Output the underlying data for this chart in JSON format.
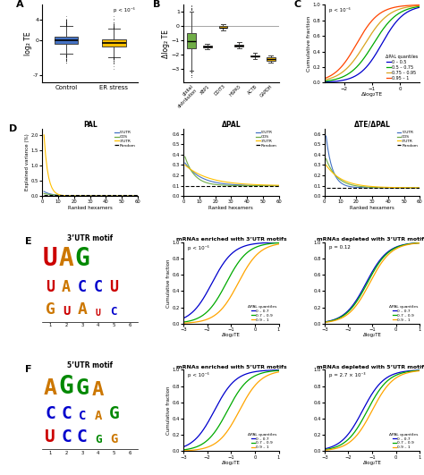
{
  "panel_A": {
    "ylabel": "log₂ TE",
    "categories": [
      "Control",
      "ER stress"
    ],
    "colors": [
      "#4472c4",
      "#ffc000"
    ],
    "pvalue": "p < 10⁻⁶",
    "ylim": [
      -8.5,
      7
    ]
  },
  "panel_B": {
    "ylabel": "Δlog₂ TE",
    "categories": [
      "global\ndistribution",
      "XBP1",
      "DDIT3",
      "HSPA5",
      "ACTB",
      "GAPDH"
    ],
    "colors": [
      "#70ad47",
      "#ffc000",
      "#ffc000",
      "#ffc000",
      "#ffc000",
      "#ffc000"
    ],
    "ylim": [
      -4.0,
      1.5
    ],
    "yticks": [
      -3,
      -2,
      -1,
      0,
      1
    ]
  },
  "panel_C": {
    "xlabel": "Δlog₂TE",
    "ylabel": "Cumulative fraction",
    "pvalue": "p < 10⁻⁶",
    "legend_title": "ΔPAL quantiles",
    "legend_entries": [
      "0 – 0.5",
      "0.5 – 0.75",
      "0.75 – 0.95",
      "0.95 – 1"
    ],
    "colors": [
      "#0000cd",
      "#00aa00",
      "#daa520",
      "#ff4500"
    ],
    "xlim": [
      -2.7,
      0.7
    ],
    "ylim": [
      0,
      1.0
    ]
  },
  "panel_D": {
    "titles": [
      "PAL",
      "ΔPAL",
      "ΔTE/ΔPAL"
    ],
    "xlabel": "Ranked hexamers",
    "ylabel": "Explained variance (%)",
    "legend_entries": [
      "5’UTR",
      "CDS",
      "3’UTR",
      "Random"
    ],
    "colors": [
      "#4472c4",
      "#70ad47",
      "#ffc000",
      "#000000"
    ],
    "line_styles": [
      "-",
      "-",
      "-",
      "--"
    ],
    "PAL_ylim": [
      0,
      2.2
    ],
    "DPAL_ylim": [
      0,
      0.65
    ],
    "DTEDPAL_ylim": [
      0,
      0.65
    ],
    "xlim": [
      0,
      60
    ]
  },
  "panel_E": {
    "title_motif": "3’UTR motif",
    "title_enriched": "mRNAs enriched with 3’UTR motifs",
    "title_depleted": "mRNAs depleted with 3’UTR motifs",
    "pvalue_enriched": "p < 10⁻⁶",
    "pvalue_depleted": "p = 0.12",
    "legend_title": "ΔPAL quantiles",
    "legend_entries": [
      "0 – 0.7",
      "0.7 – 0.9",
      "0.9 – 1"
    ],
    "colors": [
      "#0000cd",
      "#00aa00",
      "#ffa500"
    ],
    "xlabel": "Δlog₂TE",
    "ylabel": "Cumulative fraction"
  },
  "panel_F": {
    "title_motif": "5’UTR motif",
    "title_enriched": "mRNAs enriched with 5’UTR motifs",
    "title_depleted": "mRNAs depleted with 5’UTR motifs",
    "pvalue_enriched": "p < 10⁻⁶",
    "pvalue_depleted": "p = 2.7 × 10⁻³",
    "legend_title": "ΔPAL quantiles",
    "legend_entries": [
      "0 – 0.7",
      "0.7 – 0.9",
      "0.9 – 1"
    ],
    "colors": [
      "#0000cd",
      "#00aa00",
      "#ffa500"
    ],
    "xlabel": "Δlog₂TE",
    "ylabel": "Cumulative fraction"
  }
}
